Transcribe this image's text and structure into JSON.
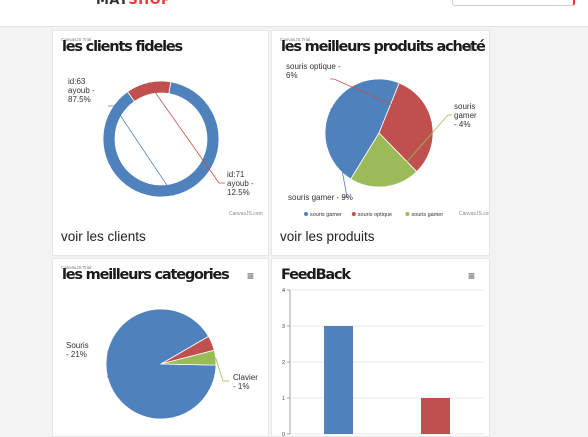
{
  "header": {
    "logo_main": "MAT",
    "logo_accent": "SHOP"
  },
  "watermark": "CanvasJS Trial",
  "credit": "CanvasJS.com",
  "menu_glyph": "≡",
  "colors": {
    "blue": "#4f81bc",
    "red": "#c0504e",
    "green": "#9bbb58"
  },
  "cards": {
    "clients": {
      "title": "les clients fideles",
      "link": "voir les clients"
    },
    "products": {
      "title": "les meilleurs produits acheté",
      "link": "voir les produits"
    },
    "categories": {
      "title": "les meilleurs categories"
    },
    "feedback": {
      "title": "FeedBack"
    }
  },
  "chart_data": [
    {
      "type": "pie",
      "variant": "doughnut",
      "title": "les clients fideles",
      "slices": [
        {
          "label": "id:63 ayoub",
          "value": 87.5,
          "text": [
            "id:63",
            "ayoub -",
            "87.5%"
          ],
          "color": "#4f81bc"
        },
        {
          "label": "id:71 ayoub",
          "value": 12.5,
          "text": [
            "id:71",
            "ayoub -",
            "12.5%"
          ],
          "color": "#c0504e"
        }
      ]
    },
    {
      "type": "pie",
      "title": "les meilleurs produits acheté",
      "legend": "bottom",
      "slices": [
        {
          "label": "souris gamer",
          "value": 9,
          "text": [
            "souris gamer - 9%"
          ],
          "color": "#4f81bc"
        },
        {
          "label": "souris optique",
          "value": 6,
          "text": [
            "souris optique -",
            "6%"
          ],
          "color": "#c0504e"
        },
        {
          "label": "souris gamer",
          "value": 4,
          "text": [
            "souris",
            "gamer",
            "- 4%"
          ],
          "color": "#9bbb58"
        }
      ]
    },
    {
      "type": "pie",
      "title": "les meilleurs categories",
      "slices": [
        {
          "label": "Souris",
          "value": 21,
          "text": [
            "Souris",
            "- 21%"
          ],
          "color": "#4f81bc"
        },
        {
          "label": "",
          "value": 1,
          "text": [],
          "color": "#c0504e"
        },
        {
          "label": "Clavier",
          "value": 1,
          "text": [
            "Clavier",
            "- 1%"
          ],
          "color": "#9bbb58"
        }
      ]
    },
    {
      "type": "bar",
      "title": "FeedBack",
      "ylim": [
        0,
        4
      ],
      "yticks": [
        0,
        1,
        2,
        3,
        4
      ],
      "values": [
        3,
        1
      ],
      "colors": [
        "#4f81bc",
        "#c0504e"
      ]
    }
  ]
}
